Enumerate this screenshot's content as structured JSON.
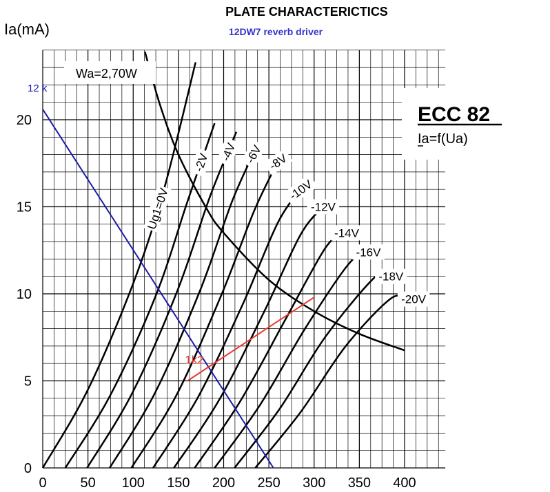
{
  "chart_data": {
    "type": "line",
    "title": "PLATE CHARACTERICTICS",
    "subtitle": "12DW7 reverb driver",
    "ylabel": "Ia(mA)",
    "xlim": [
      0,
      445
    ],
    "ylim": [
      0,
      24
    ],
    "x_ticks": [
      0,
      50,
      100,
      150,
      200,
      250,
      300,
      350,
      400
    ],
    "y_ticks": [
      0,
      5,
      10,
      15,
      20
    ],
    "grid": true,
    "tube_name": "ECC 82",
    "tube_relation": "Ia=f(Ua)",
    "power_label": "Wa=2,70W",
    "series": [
      {
        "name": "Ug1=0V",
        "label_x": 127,
        "points": [
          [
            0,
            0
          ],
          [
            50,
            4.5
          ],
          [
            100,
            10.6
          ],
          [
            134,
            16
          ],
          [
            169,
            23.3
          ]
        ]
      },
      {
        "name": "-2V",
        "label_x": 175,
        "points": [
          [
            25,
            0
          ],
          [
            75,
            4.2
          ],
          [
            125,
            9.9
          ],
          [
            160,
            15.3
          ],
          [
            190,
            19.8
          ]
        ]
      },
      {
        "name": "-4V",
        "label_x": 205,
        "points": [
          [
            49,
            0
          ],
          [
            99,
            4.3
          ],
          [
            149,
            10.2
          ],
          [
            185,
            15.6
          ],
          [
            214,
            19.3
          ]
        ]
      },
      {
        "name": "-6V",
        "label_x": 233,
        "points": [
          [
            74,
            0
          ],
          [
            124,
            4.3
          ],
          [
            174,
            10.2
          ],
          [
            210,
            15.4
          ],
          [
            238,
            18.6
          ]
        ]
      },
      {
        "name": "-8V",
        "label_x": 260,
        "points": [
          [
            98,
            0
          ],
          [
            148,
            4.2
          ],
          [
            198,
            10
          ],
          [
            234,
            14.8
          ],
          [
            262,
            17.8
          ]
        ]
      },
      {
        "name": "-10V",
        "label_x": 285,
        "points": [
          [
            122,
            0
          ],
          [
            172,
            4.1
          ],
          [
            222,
            9.5
          ],
          [
            260,
            14.1
          ],
          [
            288,
            16.2
          ]
        ]
      },
      {
        "name": "-12V",
        "label_x": 310,
        "points": [
          [
            145,
            0
          ],
          [
            195,
            3.9
          ],
          [
            245,
            9
          ],
          [
            285,
            13.4
          ],
          [
            310,
            15
          ]
        ]
      },
      {
        "name": "-14V",
        "label_x": 336,
        "points": [
          [
            168,
            0
          ],
          [
            218,
            3.8
          ],
          [
            268,
            8.5
          ],
          [
            312,
            12.6
          ],
          [
            332,
            13.5
          ]
        ]
      },
      {
        "name": "-16V",
        "label_x": 360,
        "points": [
          [
            190,
            0
          ],
          [
            240,
            3.6
          ],
          [
            290,
            8
          ],
          [
            338,
            11.7
          ],
          [
            360,
            12.4
          ]
        ]
      },
      {
        "name": "-18V",
        "label_x": 385,
        "points": [
          [
            212,
            0
          ],
          [
            262,
            3.4
          ],
          [
            312,
            7.5
          ],
          [
            366,
            10.9
          ],
          [
            382,
            11
          ]
        ]
      },
      {
        "name": "-20V",
        "label_x": 410,
        "points": [
          [
            235,
            0
          ],
          [
            285,
            3.2
          ],
          [
            335,
            7
          ],
          [
            384,
            9.7
          ],
          [
            402,
            9.7
          ]
        ]
      }
    ],
    "power_curve": {
      "name": "Wa=2,70W",
      "points": [
        [
          113,
          23.9
        ],
        [
          130,
          20.8
        ],
        [
          150,
          18
        ],
        [
          180,
          15
        ],
        [
          200,
          13.5
        ],
        [
          250,
          10.8
        ],
        [
          300,
          9
        ],
        [
          350,
          7.7
        ],
        [
          400,
          6.75
        ]
      ]
    },
    "load_lines": [
      {
        "name": "12 k",
        "color": "#1a1aa8",
        "points": [
          [
            0,
            20.6
          ],
          [
            255,
            0
          ]
        ]
      },
      {
        "name": "1k2",
        "color": "#e8392c",
        "points": [
          [
            160,
            5
          ],
          [
            300,
            9.8
          ]
        ]
      }
    ]
  }
}
